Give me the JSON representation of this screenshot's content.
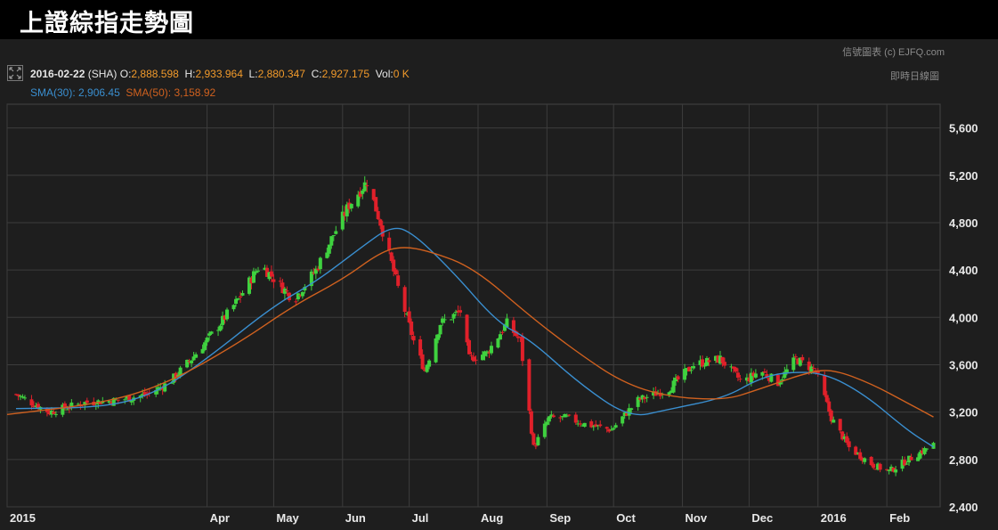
{
  "page": {
    "title": "上證綜指走勢圖",
    "credit": "信號圖表 (c) EJFQ.com",
    "realtime_label": "即時日線圖"
  },
  "legend": {
    "date": "2016-02-22",
    "symbol": "(SHA)",
    "o_label": "O:",
    "o_value": "2,888.598",
    "h_label": "H:",
    "h_value": "2,933.964",
    "l_label": "L:",
    "l_value": "2,880.347",
    "c_label": "C:",
    "c_value": "2,927.175",
    "vol_label": "Vol:",
    "vol_value": "0 K",
    "sma30_label": "SMA(30):",
    "sma30_value": "2,906.45",
    "sma50_label": "SMA(50):",
    "sma50_value": "3,158.92"
  },
  "colors": {
    "background": "#1e1e1e",
    "grid": "#3c3c3c",
    "up_candle": "#3fd23f",
    "down_candle": "#e0202a",
    "sma30": "#3a8fd0",
    "sma50": "#d0611f",
    "label_orange": "#f19a2b"
  },
  "icons": {
    "expand": "expand-icon"
  },
  "chart_data": {
    "type": "candlestick",
    "title": "上證綜指走勢圖",
    "ylim": [
      2400,
      5800
    ],
    "yticks": [
      2400,
      2800,
      3200,
      3600,
      4000,
      4400,
      4800,
      5200,
      5600
    ],
    "ytick_labels": [
      "2,400",
      "2,800",
      "3,200",
      "3,600",
      "4,000",
      "4,400",
      "4,800",
      "5,200",
      "5,600"
    ],
    "xlim": [
      "2015-01-01",
      "2016-02-25"
    ],
    "xticks": [
      "2015-01-01",
      "2015-04-01",
      "2015-05-01",
      "2015-06-01",
      "2015-07-01",
      "2015-08-01",
      "2015-09-01",
      "2015-10-01",
      "2015-11-01",
      "2015-12-01",
      "2016-01-01",
      "2016-02-01"
    ],
    "xtick_labels": [
      "2015",
      "Apr",
      "May",
      "Jun",
      "Jul",
      "Aug",
      "Sep",
      "Oct",
      "Nov",
      "Dec",
      "2016",
      "Feb"
    ],
    "grid": true,
    "axis_position": "right",
    "close_series": [
      [
        "2015-01-05",
        3350
      ],
      [
        "2015-01-20",
        3200
      ],
      [
        "2015-02-05",
        3280
      ],
      [
        "2015-02-20",
        3300
      ],
      [
        "2015-03-05",
        3350
      ],
      [
        "2015-03-15",
        3450
      ],
      [
        "2015-03-25",
        3650
      ],
      [
        "2015-04-05",
        3900
      ],
      [
        "2015-04-15",
        4150
      ],
      [
        "2015-04-25",
        4450
      ],
      [
        "2015-05-05",
        4250
      ],
      [
        "2015-05-10",
        4150
      ],
      [
        "2015-05-20",
        4400
      ],
      [
        "2015-05-28",
        4700
      ],
      [
        "2015-06-04",
        4950
      ],
      [
        "2015-06-12",
        5150
      ],
      [
        "2015-06-18",
        4800
      ],
      [
        "2015-06-26",
        4250
      ],
      [
        "2015-07-03",
        3800
      ],
      [
        "2015-07-08",
        3550
      ],
      [
        "2015-07-15",
        3950
      ],
      [
        "2015-07-24",
        4050
      ],
      [
        "2015-07-28",
        3650
      ],
      [
        "2015-08-05",
        3700
      ],
      [
        "2015-08-14",
        3950
      ],
      [
        "2015-08-20",
        3800
      ],
      [
        "2015-08-26",
        2900
      ],
      [
        "2015-09-02",
        3150
      ],
      [
        "2015-09-10",
        3150
      ],
      [
        "2015-09-18",
        3100
      ],
      [
        "2015-09-30",
        3050
      ],
      [
        "2015-10-12",
        3300
      ],
      [
        "2015-10-26",
        3400
      ],
      [
        "2015-11-06",
        3600
      ],
      [
        "2015-11-18",
        3650
      ],
      [
        "2015-11-28",
        3450
      ],
      [
        "2015-12-06",
        3550
      ],
      [
        "2015-12-14",
        3450
      ],
      [
        "2015-12-22",
        3650
      ],
      [
        "2015-12-31",
        3550
      ],
      [
        "2016-01-07",
        3150
      ],
      [
        "2016-01-15",
        2900
      ],
      [
        "2016-01-26",
        2750
      ],
      [
        "2016-02-02",
        2700
      ],
      [
        "2016-02-22",
        2927
      ]
    ],
    "series": [
      {
        "name": "SMA(30)",
        "points": [
          [
            "2015-01-05",
            3230
          ],
          [
            "2015-02-15",
            3240
          ],
          [
            "2015-03-10",
            3370
          ],
          [
            "2015-04-01",
            3650
          ],
          [
            "2015-05-01",
            4100
          ],
          [
            "2015-05-20",
            4300
          ],
          [
            "2015-06-10",
            4600
          ],
          [
            "2015-06-22",
            4760
          ],
          [
            "2015-07-01",
            4740
          ],
          [
            "2015-07-20",
            4400
          ],
          [
            "2015-08-10",
            3950
          ],
          [
            "2015-08-24",
            3820
          ],
          [
            "2015-09-15",
            3450
          ],
          [
            "2015-10-08",
            3150
          ],
          [
            "2015-10-25",
            3220
          ],
          [
            "2015-11-20",
            3320
          ],
          [
            "2015-12-05",
            3480
          ],
          [
            "2015-12-18",
            3540
          ],
          [
            "2016-01-04",
            3530
          ],
          [
            "2016-01-22",
            3350
          ],
          [
            "2016-02-10",
            3050
          ],
          [
            "2016-02-22",
            2906
          ]
        ]
      },
      {
        "name": "SMA(50)",
        "points": [
          [
            "2015-01-01",
            3180
          ],
          [
            "2015-02-15",
            3280
          ],
          [
            "2015-03-15",
            3450
          ],
          [
            "2015-04-15",
            3780
          ],
          [
            "2015-05-10",
            4100
          ],
          [
            "2015-06-01",
            4320
          ],
          [
            "2015-06-18",
            4550
          ],
          [
            "2015-06-28",
            4600
          ],
          [
            "2015-07-10",
            4560
          ],
          [
            "2015-07-30",
            4420
          ],
          [
            "2015-08-25",
            4000
          ],
          [
            "2015-09-15",
            3700
          ],
          [
            "2015-10-05",
            3450
          ],
          [
            "2015-10-25",
            3330
          ],
          [
            "2015-11-20",
            3300
          ],
          [
            "2015-12-05",
            3390
          ],
          [
            "2015-12-28",
            3540
          ],
          [
            "2016-01-08",
            3560
          ],
          [
            "2016-01-25",
            3440
          ],
          [
            "2016-02-10",
            3280
          ],
          [
            "2016-02-22",
            3159
          ]
        ]
      }
    ]
  }
}
